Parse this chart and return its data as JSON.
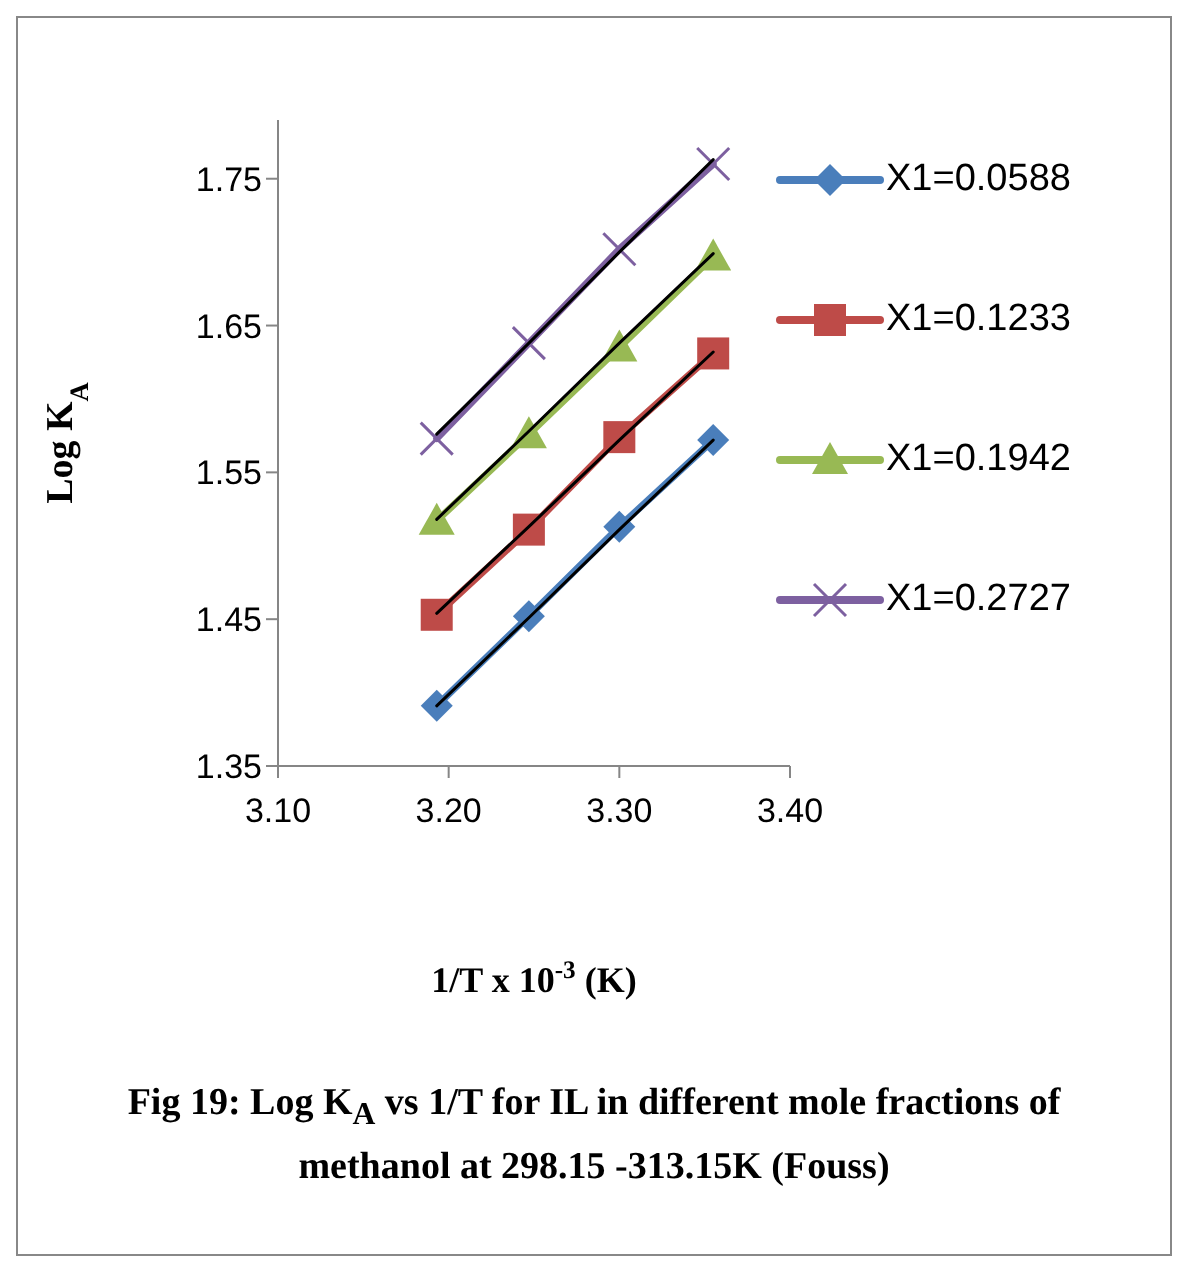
{
  "chart_data": {
    "type": "line",
    "xlabel": "1/T x 10$^{-3}$ (K)",
    "ylabel": "Log K$_{A}$",
    "annotations": [
      "Fig 19:  Log K$_{A}$ vs 1/T for IL in different mole fractions  of methanol at 298.15 -313.15K (Fouss)"
    ],
    "x": [
      3.193,
      3.247,
      3.3,
      3.355
    ],
    "series": [
      {
        "name": "X1=0.0588",
        "color": "#4a7ebb",
        "marker": "diamond",
        "values": [
          1.391,
          1.452,
          1.513,
          1.572
        ]
      },
      {
        "name": "X1=0.1233",
        "color": "#be4b48",
        "marker": "square",
        "values": [
          1.453,
          1.511,
          1.574,
          1.631
        ]
      },
      {
        "name": "X1=0.1942",
        "color": "#98b954",
        "marker": "triangle",
        "values": [
          1.517,
          1.576,
          1.635,
          1.697
        ]
      },
      {
        "name": "X1=0.2727",
        "color": "#7d60a0",
        "marker": "cross",
        "values": [
          1.573,
          1.638,
          1.702,
          1.76
        ]
      },
      {
        "type": "line",
        "color": "#000000",
        "marker": "none",
        "values": [
          1.391,
          1.451,
          1.511,
          1.572
        ]
      },
      {
        "type": "line",
        "color": "#000000",
        "marker": "none",
        "values": [
          1.454,
          1.513,
          1.572,
          1.632
        ]
      },
      {
        "type": "line",
        "color": "#000000",
        "marker": "none",
        "values": [
          1.518,
          1.578,
          1.638,
          1.699
        ]
      },
      {
        "type": "line",
        "color": "#000000",
        "marker": "none",
        "values": [
          1.576,
          1.638,
          1.7,
          1.763
        ]
      }
    ],
    "xlim": [
      3.1,
      3.4
    ],
    "xticks": [
      {
        "value": 3.1,
        "label": "3.10"
      },
      {
        "value": 3.2,
        "label": "3.20"
      },
      {
        "value": 3.3,
        "label": "3.30"
      },
      {
        "value": 3.4,
        "label": "3.40"
      }
    ],
    "ylim": [
      1.35,
      1.79
    ],
    "yticks": [
      1.35,
      1.45,
      1.55,
      1.65,
      1.75
    ],
    "legend": "right"
  }
}
